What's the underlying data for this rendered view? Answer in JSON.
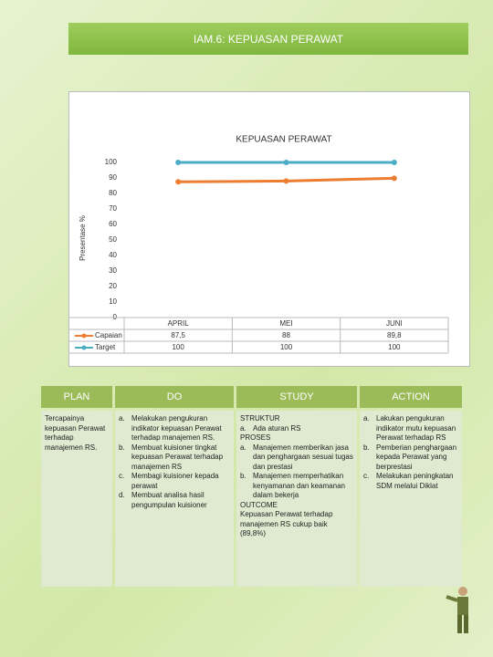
{
  "header": {
    "title": "IAM.6: KEPUASAN PERAWAT"
  },
  "chart_data": {
    "type": "line",
    "title": "KEPUASAN PERAWAT",
    "y_label": "Presentase %",
    "categories": [
      "APRIL",
      "MEI",
      "JUNI"
    ],
    "series": [
      {
        "name": "Capaian",
        "color": "#ed7d31",
        "values": [
          87.5,
          88,
          89.8
        ],
        "value_labels": [
          "87,5",
          "88",
          "89,8"
        ]
      },
      {
        "name": "Target",
        "color": "#4bacc6",
        "values": [
          100,
          100,
          100
        ]
      }
    ],
    "ylim": [
      0,
      100
    ],
    "yticks": [
      0,
      10,
      20,
      30,
      40,
      50,
      60,
      70,
      80,
      90,
      100
    ]
  },
  "pdsa": [
    {
      "title": "PLAN",
      "items": [
        {
          "text": "Tercapainya kepuasan Perawat terhadap manajemen RS."
        }
      ]
    },
    {
      "title": "DO",
      "items": [
        {
          "marker": "a.",
          "text": "Melakukan pengukuran indikator kepuasan Perawat terhadap manajemen RS."
        },
        {
          "marker": "b.",
          "text": "Membuat kuisioner tingkat kepuasan Perawat terhadap manajemen RS"
        },
        {
          "marker": "c.",
          "text": "Membagi kuisioner kepada perawat"
        },
        {
          "marker": "d.",
          "text": "Membuat analisa hasil pengumpulan kuisioner"
        }
      ]
    },
    {
      "title": "STUDY",
      "items": [
        {
          "text": "STRUKTUR"
        },
        {
          "marker": "a.",
          "text": "Ada aturan RS"
        },
        {
          "text": "PROSES"
        },
        {
          "marker": "a.",
          "text": "Manajemen memberikan jasa dan penghargaan sesuai tugas dan prestasi"
        },
        {
          "marker": "b.",
          "text": "Manajemen memperhatikan kenyamanan dan keamanan dalam bekerja"
        },
        {
          "text": "OUTCOME"
        },
        {
          "text": "Kepuasan Perawat terhadap manajemen RS cukup baik (89,8%)"
        }
      ]
    },
    {
      "title": "ACTION",
      "items": [
        {
          "marker": "a.",
          "text": "Lakukan pengukuran indikator mutu kepuasan Perawat terhadap RS"
        },
        {
          "marker": "b.",
          "text": "Pemberian penghargaan kepada Perawat yang berprestasi"
        },
        {
          "marker": "c.",
          "text": "Melakukan peningkatan SDM melalui Diklat"
        }
      ]
    }
  ]
}
